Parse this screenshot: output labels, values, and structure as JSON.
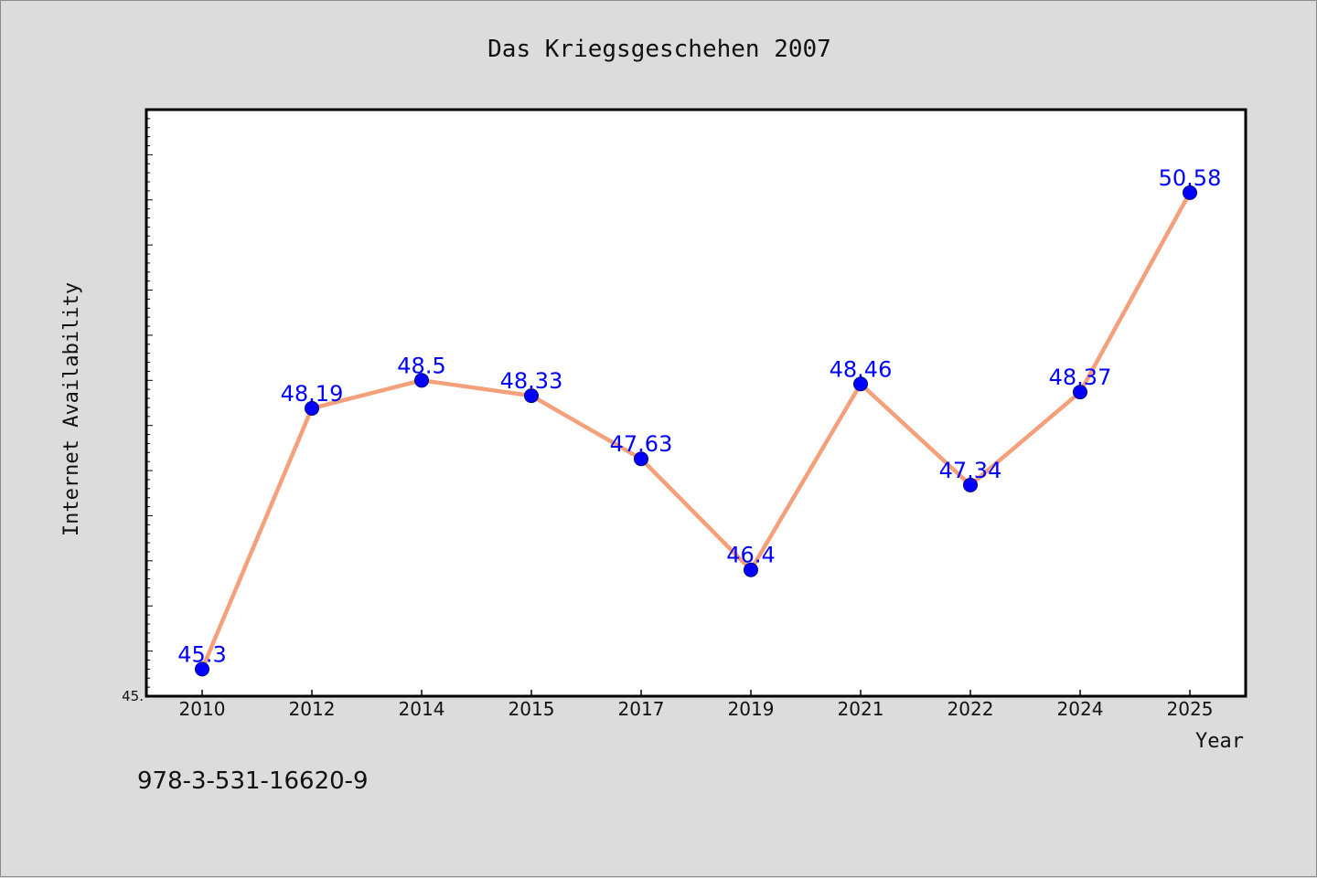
{
  "chart_data": {
    "type": "line",
    "title": "Das Kriegsgeschehen 2007",
    "xlabel": "Year",
    "ylabel": "Internet Availability",
    "categories": [
      "2010",
      "2012",
      "2014",
      "2015",
      "2017",
      "2019",
      "2021",
      "2022",
      "2024",
      "2025"
    ],
    "series": [
      {
        "values": [
          45.3,
          48.19,
          48.5,
          48.33,
          47.63,
          46.4,
          48.46,
          47.34,
          48.37,
          50.58
        ],
        "labels": [
          "45.3",
          "48.19",
          "48.5",
          "48.33",
          "47.63",
          "46.4",
          "48.46",
          "47.34",
          "48.37",
          "50.58"
        ],
        "line_color": "#f4a07a",
        "marker_color": "#0000ff"
      }
    ],
    "ylim": [
      45,
      51.5
    ],
    "y_tick_label": "45.",
    "grid": false,
    "legend": "none"
  },
  "footer": {
    "isbn": "978-3-531-16620-9"
  }
}
